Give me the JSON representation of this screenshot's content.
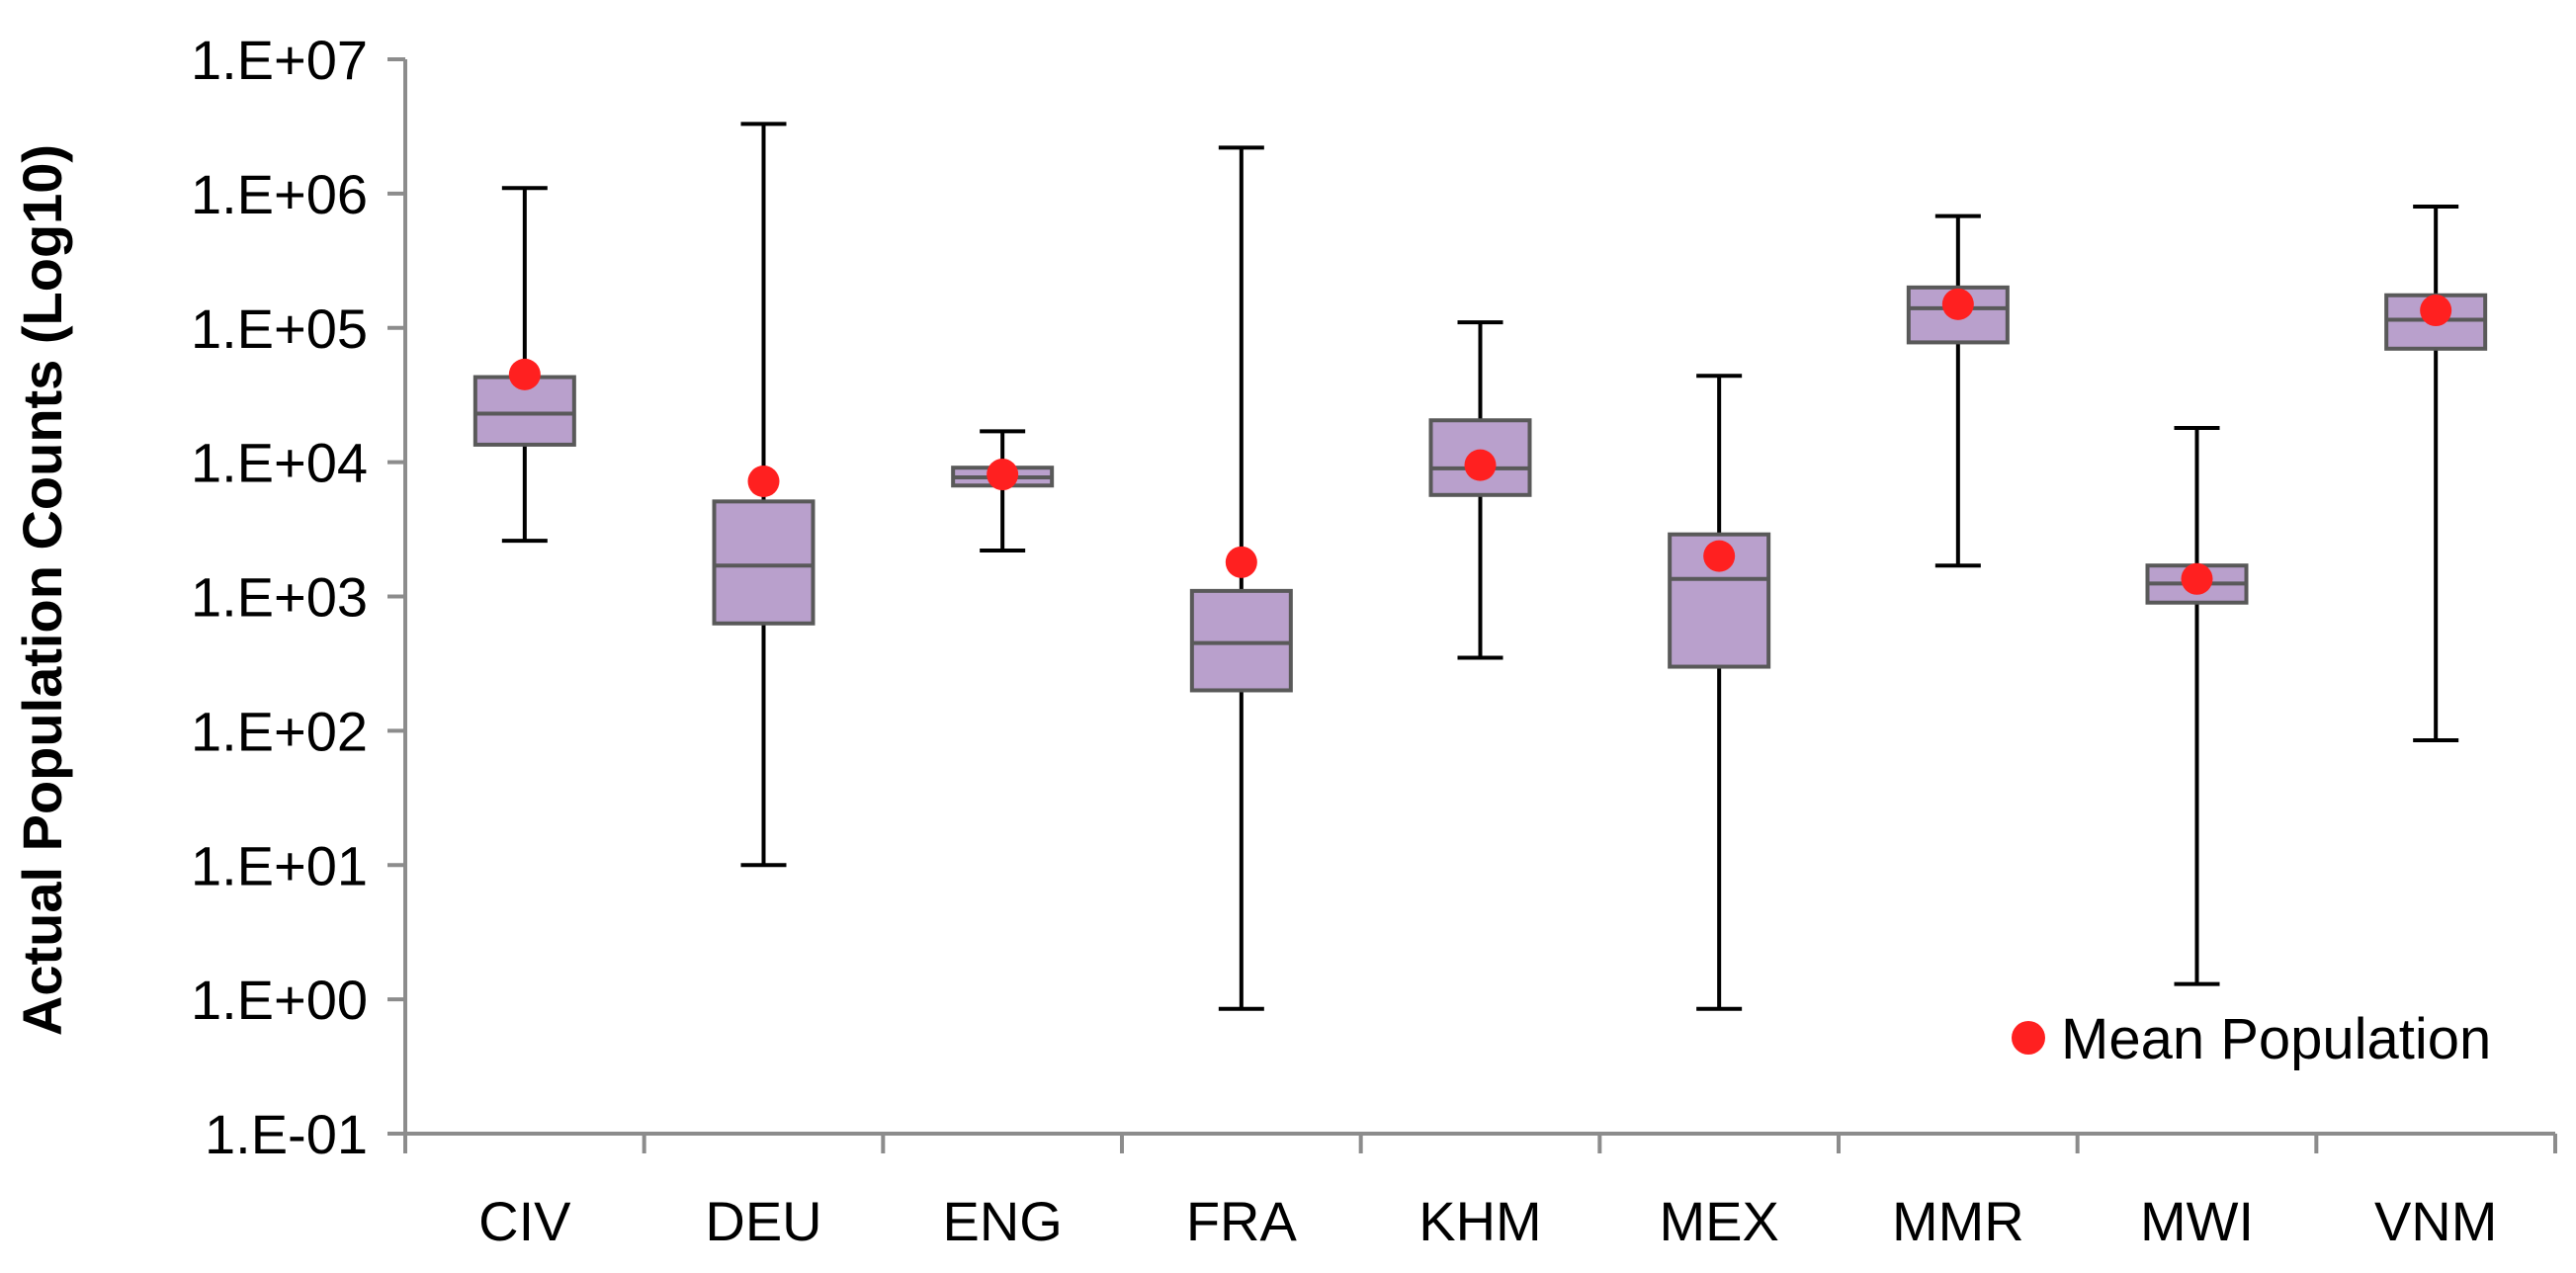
{
  "chart_data": {
    "type": "boxplot",
    "title": "",
    "xlabel": "",
    "ylabel": "Actual Population Counts (Log10)",
    "yscale": "log10",
    "ylim": [
      0.1,
      10000000
    ],
    "ytick_labels": [
      "1.E-01",
      "1.E+00",
      "1.E+01",
      "1.E+02",
      "1.E+03",
      "1.E+04",
      "1.E+05",
      "1.E+06",
      "1.E+07"
    ],
    "grid": false,
    "legend": {
      "position": "bottom-right",
      "entries": [
        {
          "label": "Mean Population",
          "marker": "circle",
          "color": "#ff2020"
        }
      ]
    },
    "colors": {
      "box_fill": "#b9a0cc",
      "box_stroke": "#595959",
      "whisker": "#000000",
      "mean_marker": "#ff2020",
      "axis": "#8c8c8c"
    },
    "categories": [
      "CIV",
      "DEU",
      "ENG",
      "FRA",
      "KHM",
      "MEX",
      "MMR",
      "MWI",
      "VNM"
    ],
    "series": [
      {
        "name": "CIV",
        "min": 2600,
        "q1": 13500,
        "median": 23000,
        "q3": 43000,
        "max": 1100000,
        "mean": 45000
      },
      {
        "name": "DEU",
        "min": 10,
        "q1": 630,
        "median": 1700,
        "q3": 5100,
        "max": 3300000,
        "mean": 7200
      },
      {
        "name": "ENG",
        "min": 2200,
        "q1": 6700,
        "median": 7700,
        "q3": 9100,
        "max": 17000,
        "mean": 8100
      },
      {
        "name": "FRA",
        "min": 0.85,
        "q1": 200,
        "median": 450,
        "q3": 1100,
        "max": 2200000,
        "mean": 1800
      },
      {
        "name": "KHM",
        "min": 350,
        "q1": 5700,
        "median": 9000,
        "q3": 20500,
        "max": 110000,
        "mean": 9500
      },
      {
        "name": "MEX",
        "min": 0.85,
        "q1": 300,
        "median": 1350,
        "q3": 2900,
        "max": 44000,
        "mean": 2000
      },
      {
        "name": "MMR",
        "min": 1700,
        "q1": 78000,
        "median": 140000,
        "q3": 200000,
        "max": 680000,
        "mean": 150000
      },
      {
        "name": "MWI",
        "min": 1.3,
        "q1": 900,
        "median": 1250,
        "q3": 1700,
        "max": 18000,
        "mean": 1350
      },
      {
        "name": "VNM",
        "min": 85,
        "q1": 70000,
        "median": 115000,
        "q3": 175000,
        "max": 800000,
        "mean": 135000
      }
    ]
  }
}
